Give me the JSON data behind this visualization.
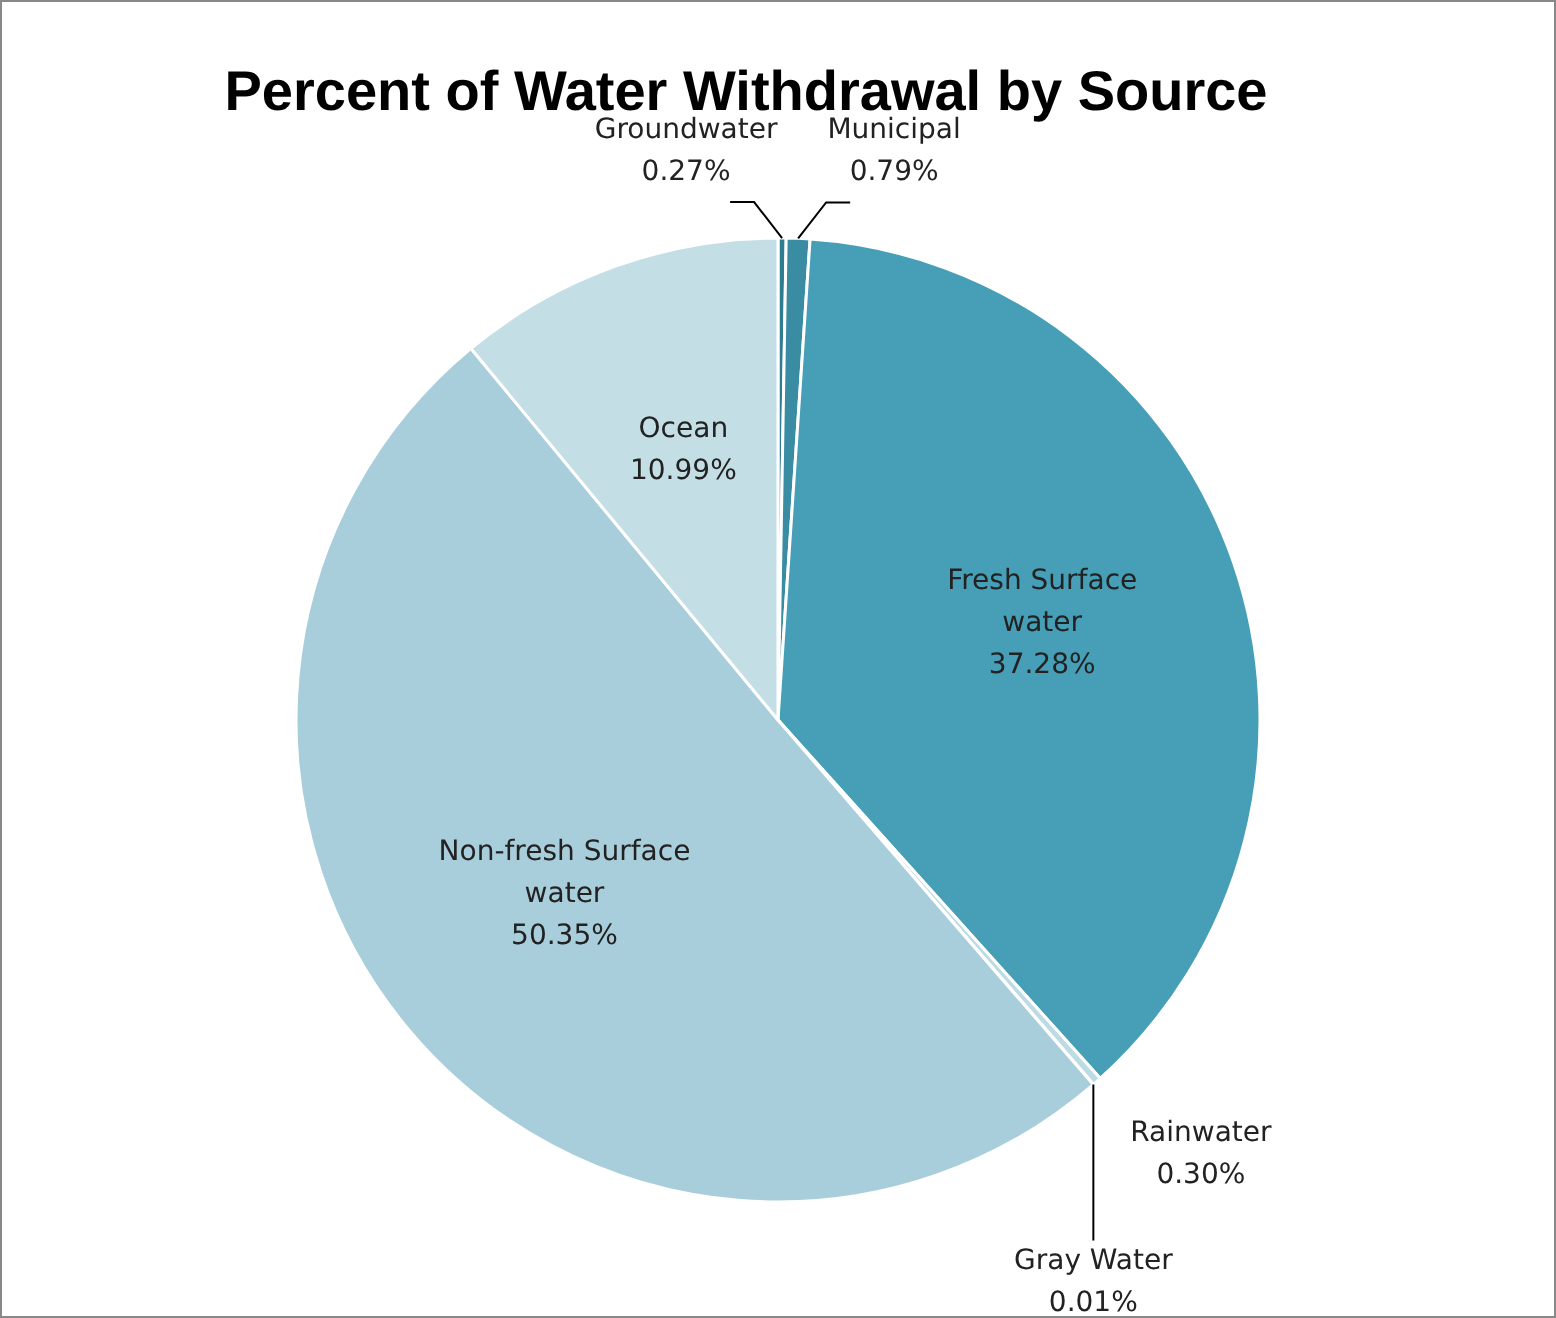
{
  "chart_data": {
    "type": "pie",
    "title": "Percent of Water Withdrawal by Source",
    "categories": [
      "Groundwater",
      "Municipal",
      "Fresh Surface water",
      "Rainwater",
      "Gray Water",
      "Non-fresh Surface water",
      "Ocean"
    ],
    "values": [
      0.27,
      0.79,
      37.28,
      0.3,
      0.01,
      50.35,
      10.99
    ],
    "colors": [
      "#2f7b8f",
      "#3a8ca3",
      "#479fb7",
      "#bcdbe4",
      "#8fc3d3",
      "#a9cedb",
      "#c4dee6"
    ],
    "value_labels": [
      "0.27%",
      "0.79%",
      "37.28%",
      "0.30%",
      "0.01%",
      "50.35%",
      "10.99%"
    ]
  }
}
